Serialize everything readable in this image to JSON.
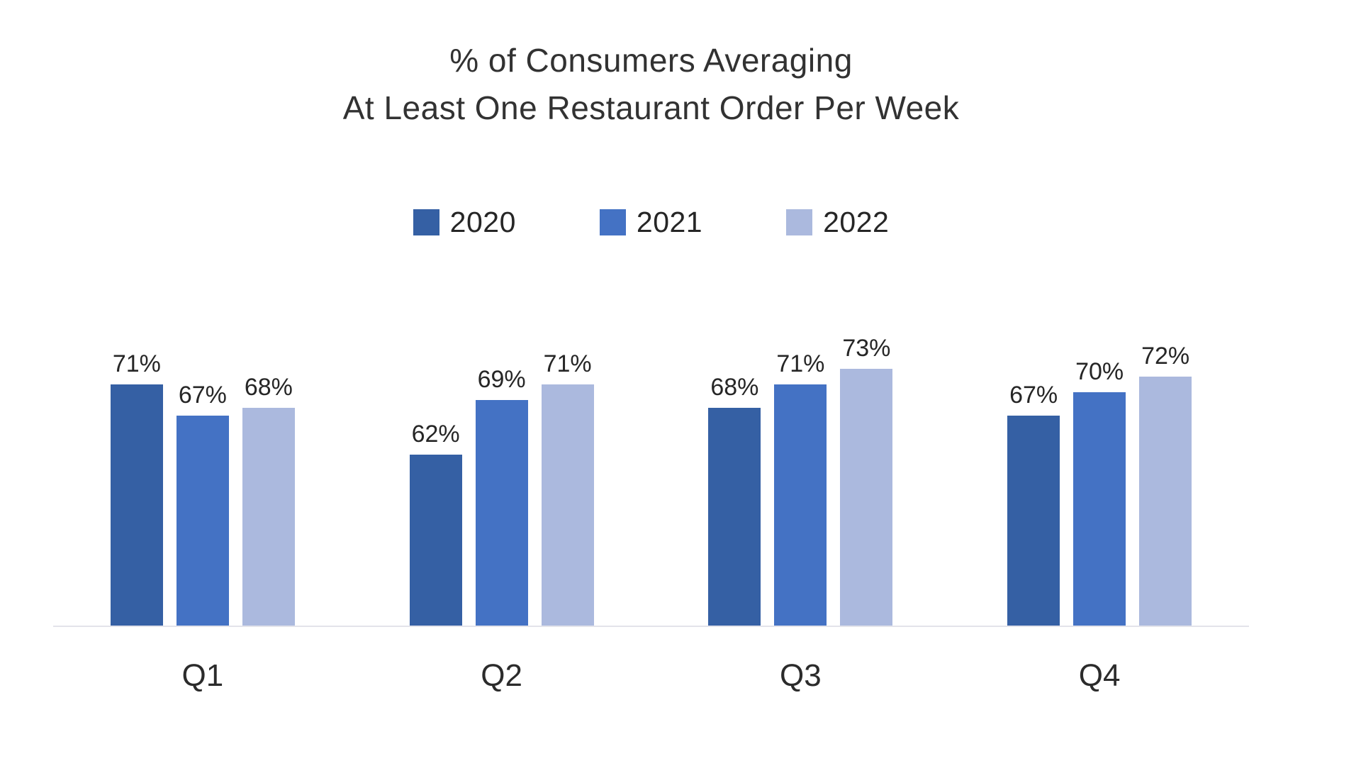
{
  "title": {
    "line1": "% of Consumers Averaging",
    "line2": "At Least One Restaurant Order Per Week"
  },
  "chart_data": {
    "type": "bar",
    "title": "% of Consumers Averaging At Least One Restaurant Order Per Week",
    "categories": [
      "Q1",
      "Q2",
      "Q3",
      "Q4"
    ],
    "series": [
      {
        "name": "2020",
        "color": "#3560A4",
        "values": [
          71,
          62,
          68,
          67
        ]
      },
      {
        "name": "2021",
        "color": "#4472C4",
        "values": [
          67,
          69,
          71,
          70
        ]
      },
      {
        "name": "2022",
        "color": "#ABB9DE",
        "values": [
          68,
          71,
          73,
          72
        ]
      }
    ],
    "data_label_suffix": "%",
    "data_labels": [
      [
        "71%",
        "67%",
        "68%"
      ],
      [
        "62%",
        "69%",
        "71%"
      ],
      [
        "68%",
        "71%",
        "73%"
      ],
      [
        "67%",
        "70%",
        "72%"
      ]
    ],
    "xlabel": "",
    "ylabel": "",
    "ylim": [
      40,
      80
    ],
    "grid": false,
    "legend_position": "top",
    "axis_line_color": "#e3e3ea",
    "background_color": "#ffffff"
  }
}
